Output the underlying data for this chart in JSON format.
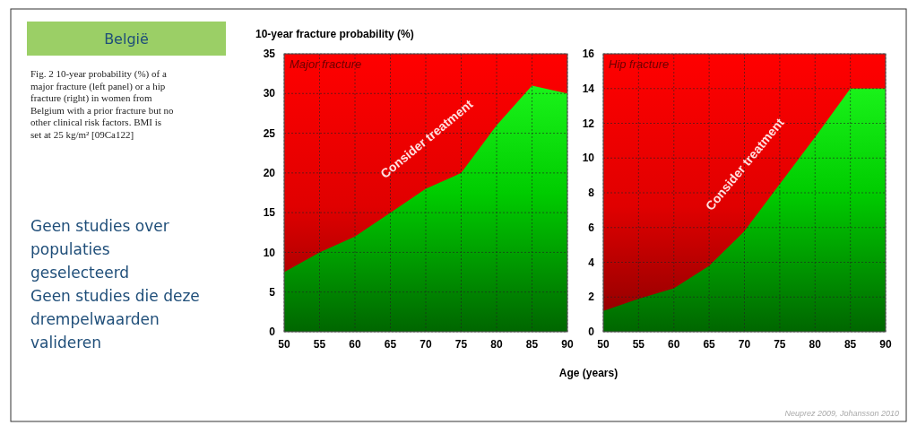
{
  "chart_data": [
    {
      "type": "other",
      "title": "België",
      "annotations": [
        "Fig. 2 10-year probability (%) of a major fracture (left panel) or a hip fracture (right) in women from Belgium with a prior fracture but no other clinical risk factors. BMI is set at 25 kg/m² [09Ca122]",
        "Geen studies over populaties geselecteerd",
        "Geen studies die deze drempelwaarden valideren",
        "Neuprez 2009, Johansson 2010"
      ]
    },
    {
      "type": "area",
      "title": "Major fracture",
      "ylabel": "10-year fracture probability (%)",
      "xlabel": "Age (years)",
      "x": [
        50,
        55,
        60,
        65,
        70,
        75,
        80,
        85,
        90
      ],
      "series": [
        {
          "color": "#00cc00",
          "values": [
            7.5,
            10,
            12,
            15,
            18,
            20,
            26,
            31,
            30
          ]
        }
      ],
      "xlim": [
        50,
        90
      ],
      "xticks": [
        50,
        55,
        60,
        65,
        70,
        75,
        80,
        85,
        90
      ],
      "ylim": [
        0,
        35
      ],
      "yticks": [
        0,
        5,
        10,
        15,
        20,
        25,
        30,
        35
      ],
      "grid": true,
      "annotations": [
        "Consider treatment"
      ]
    },
    {
      "type": "area",
      "title": "Hip fracture",
      "x": [
        50,
        55,
        60,
        65,
        70,
        75,
        80,
        85,
        90
      ],
      "series": [
        {
          "color": "#00cc00",
          "values": [
            1.2,
            1.9,
            2.5,
            3.8,
            5.8,
            8.5,
            11.2,
            14,
            14
          ]
        }
      ],
      "xlim": [
        50,
        90
      ],
      "xticks": [
        50,
        55,
        60,
        65,
        70,
        75,
        80,
        85,
        90
      ],
      "ylim": [
        0,
        16
      ],
      "yticks": [
        0,
        2,
        4,
        6,
        8,
        10,
        12,
        14,
        16
      ],
      "grid": true,
      "annotations": [
        "Consider treatment"
      ]
    }
  ]
}
